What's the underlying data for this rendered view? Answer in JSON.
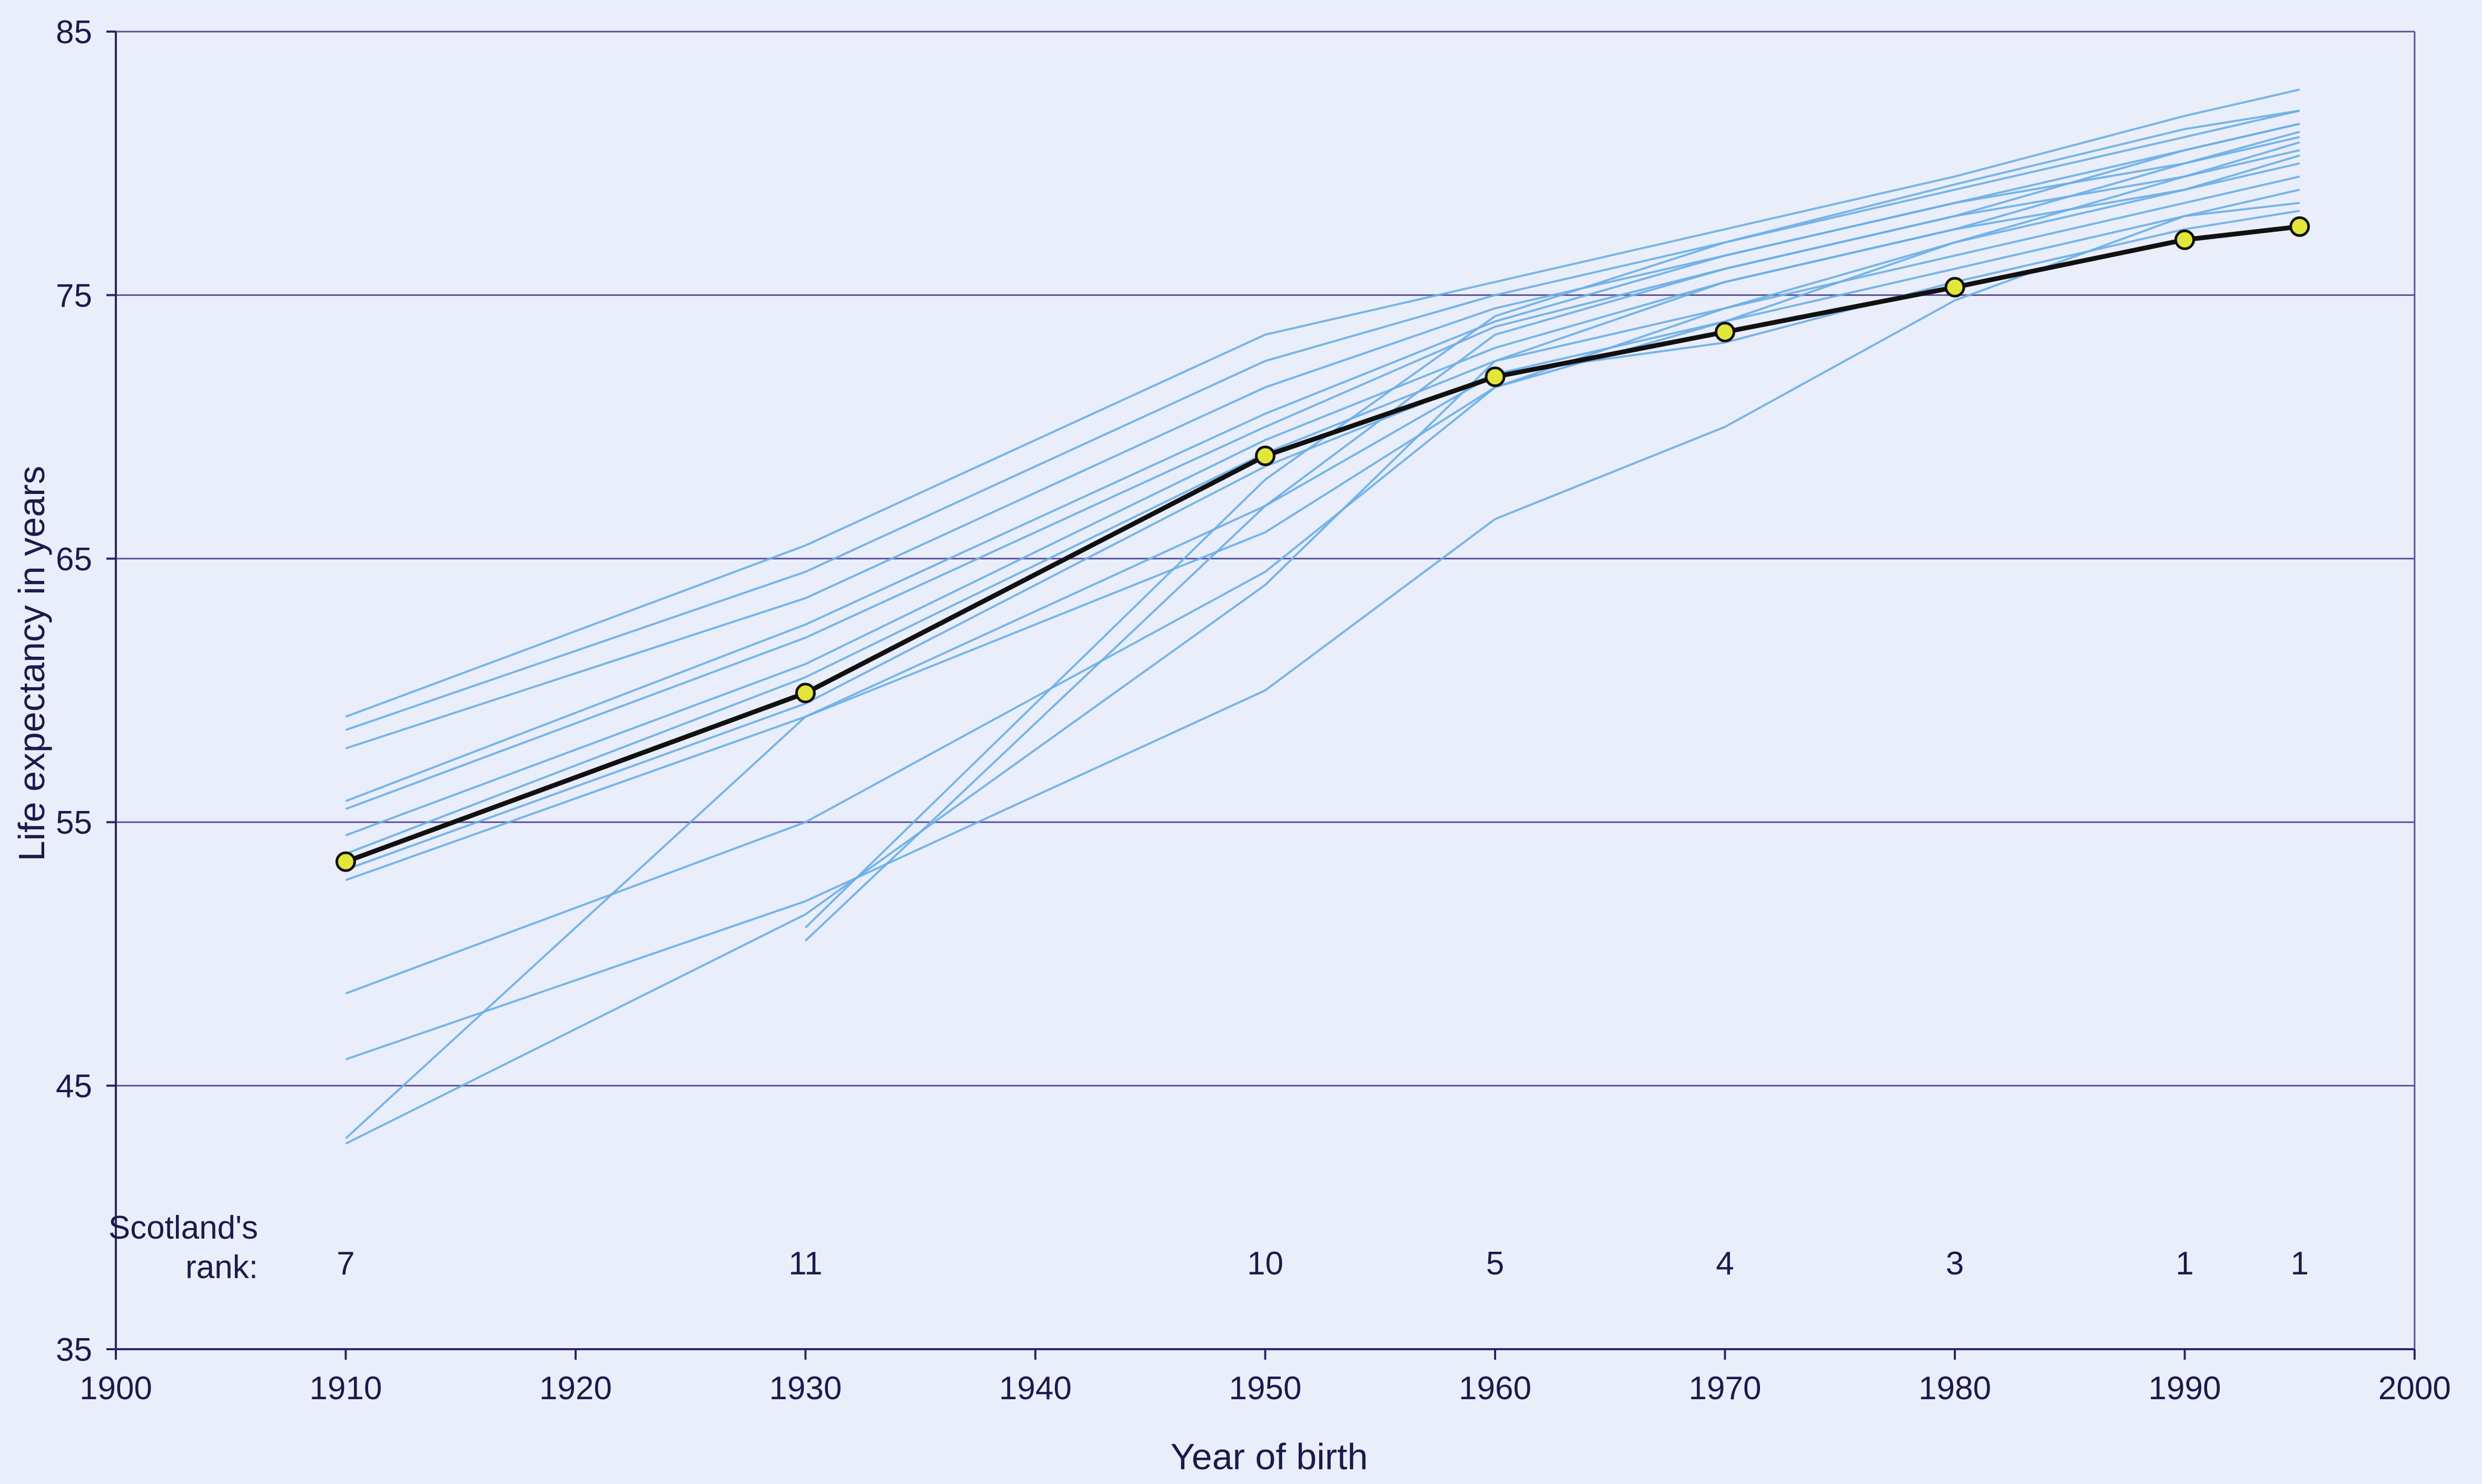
{
  "chart_data": {
    "type": "line",
    "xlabel": "Year of birth",
    "ylabel": "Life expectancy in years",
    "xlim": [
      1900,
      2000
    ],
    "ylim": [
      35,
      85
    ],
    "xticks": [
      1900,
      1910,
      1920,
      1930,
      1940,
      1950,
      1960,
      1970,
      1980,
      1990,
      2000
    ],
    "yticks": [
      35,
      45,
      55,
      65,
      75,
      85
    ],
    "grid": "horizontal",
    "colors": {
      "background": "#eaeefb",
      "gridline": "#5a4f9a",
      "axis": "#2a2566",
      "comparison": "#6aaee4",
      "scotland_line": "#111111",
      "scotland_marker": "#e3e63a"
    },
    "scotland": {
      "x": [
        1910,
        1930,
        1950,
        1960,
        1970,
        1980,
        1990,
        1995
      ],
      "y": [
        53.5,
        59.9,
        68.9,
        71.9,
        73.6,
        75.3,
        77.1,
        77.6
      ]
    },
    "comparison_series": [
      {
        "x": [
          1910,
          1930,
          1950,
          1960,
          1970,
          1980,
          1990,
          1995
        ],
        "y": [
          59.0,
          65.5,
          73.5,
          75.5,
          77.5,
          79.5,
          81.8,
          82.8
        ]
      },
      {
        "x": [
          1910,
          1930,
          1950,
          1960,
          1970,
          1980,
          1990,
          1995
        ],
        "y": [
          58.5,
          64.5,
          72.5,
          75.0,
          77.0,
          79.0,
          81.0,
          82.0
        ]
      },
      {
        "x": [
          1910,
          1930,
          1950,
          1960,
          1970,
          1980,
          1990,
          1995
        ],
        "y": [
          57.8,
          63.5,
          71.5,
          74.5,
          76.5,
          78.5,
          80.5,
          81.5
        ]
      },
      {
        "x": [
          1910,
          1930,
          1950,
          1960,
          1970,
          1980,
          1990,
          1995
        ],
        "y": [
          55.8,
          62.5,
          70.5,
          74.0,
          76.5,
          78.5,
          80.0,
          81.2
        ]
      },
      {
        "x": [
          1910,
          1930,
          1950,
          1960,
          1970,
          1980,
          1990,
          1995
        ],
        "y": [
          55.5,
          62.0,
          70.0,
          73.8,
          76.0,
          78.0,
          79.5,
          80.8
        ]
      },
      {
        "x": [
          1910,
          1930,
          1950,
          1960,
          1970,
          1980,
          1990,
          1995
        ],
        "y": [
          54.5,
          61.0,
          69.5,
          73.0,
          75.5,
          77.5,
          79.0,
          80.3
        ]
      },
      {
        "x": [
          1910,
          1930,
          1950,
          1960,
          1970,
          1980,
          1990,
          1995
        ],
        "y": [
          53.8,
          60.5,
          69.0,
          72.5,
          74.5,
          76.5,
          78.5,
          79.5
        ]
      },
      {
        "x": [
          1910,
          1930,
          1950,
          1960,
          1970,
          1980,
          1990,
          1995
        ],
        "y": [
          53.2,
          59.5,
          68.5,
          72.0,
          74.0,
          76.0,
          78.0,
          79.0
        ]
      },
      {
        "x": [
          1910,
          1930,
          1950,
          1960,
          1970,
          1980,
          1990,
          1995
        ],
        "y": [
          52.8,
          59.0,
          67.0,
          72.0,
          73.2,
          75.5,
          77.5,
          78.2
        ]
      },
      {
        "x": [
          1910,
          1930,
          1950,
          1960,
          1970,
          1980,
          1990,
          1995
        ],
        "y": [
          48.5,
          55.0,
          64.5,
          71.5,
          74.0,
          77.0,
          79.0,
          80.0
        ]
      },
      {
        "x": [
          1910,
          1930,
          1950,
          1960,
          1970,
          1980,
          1990,
          1995
        ],
        "y": [
          46.0,
          52.0,
          60.0,
          66.5,
          70.0,
          74.8,
          78.0,
          78.5
        ]
      },
      {
        "x": [
          1910,
          1930,
          1950,
          1960,
          1970,
          1980,
          1990,
          1995
        ],
        "y": [
          43.0,
          59.0,
          66.0,
          71.5,
          74.5,
          77.0,
          79.5,
          80.5
        ]
      },
      {
        "x": [
          1910,
          1930,
          1950,
          1960,
          1970,
          1980,
          1990,
          1995
        ],
        "y": [
          42.8,
          51.5,
          64.0,
          72.5,
          75.5,
          77.5,
          80.0,
          81.0
        ]
      },
      {
        "x": [
          1930,
          1950,
          1960,
          1970,
          1980,
          1990,
          1995
        ],
        "y": [
          50.5,
          67.0,
          73.5,
          76.0,
          78.0,
          80.5,
          81.5
        ]
      },
      {
        "x": [
          1930,
          1950,
          1960,
          1970,
          1980,
          1990,
          1995
        ],
        "y": [
          51.0,
          68.0,
          74.2,
          77.0,
          79.2,
          81.3,
          82.0
        ]
      }
    ],
    "rank_label": "Scotland's\nrank:",
    "ranks": [
      {
        "year": 1910,
        "rank": "7"
      },
      {
        "year": 1930,
        "rank": "11"
      },
      {
        "year": 1950,
        "rank": "10"
      },
      {
        "year": 1960,
        "rank": "5"
      },
      {
        "year": 1970,
        "rank": "4"
      },
      {
        "year": 1980,
        "rank": "3"
      },
      {
        "year": 1990,
        "rank": "1"
      },
      {
        "year": 1995,
        "rank": "1"
      }
    ]
  }
}
